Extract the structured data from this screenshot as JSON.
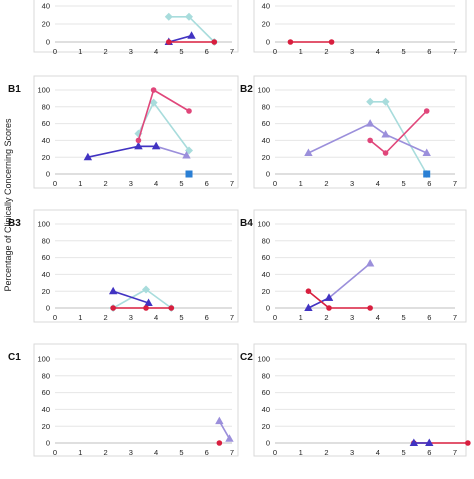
{
  "chart_data": {
    "type": "line",
    "ylabel": "Percentage of Clinically Concerning Scores",
    "x_ticks": [
      "0",
      "1",
      "2",
      "3",
      "4",
      "5",
      "6",
      "7"
    ],
    "y_ticks": [
      "0",
      "20",
      "40",
      "60",
      "80",
      "100"
    ],
    "grid": true,
    "colors": {
      "light_blue": "#a8dcdc",
      "purple": "#9b8fdb",
      "dark_blue": "#4133c2",
      "red": "#d81e3e",
      "pink": "#e0467a",
      "blue_square": "#2a7fd4"
    },
    "panels": [
      {
        "label": "",
        "xlim": [
          0,
          7
        ],
        "ylim": [
          0,
          40
        ],
        "y_ticks": [
          "0",
          "20",
          "40"
        ],
        "series": [
          {
            "color": "light_blue",
            "marker": "diamond",
            "points": [
              [
                4.5,
                28
              ],
              [
                5.3,
                28
              ],
              [
                6.3,
                0
              ]
            ]
          },
          {
            "color": "dark_blue",
            "marker": "triangle",
            "points": [
              [
                4.5,
                0
              ],
              [
                5.4,
                7
              ]
            ]
          },
          {
            "color": "red",
            "marker": "circle",
            "points": [
              [
                4.5,
                0
              ],
              [
                6.3,
                0
              ]
            ]
          }
        ]
      },
      {
        "label": "",
        "xlim": [
          0,
          7
        ],
        "ylim": [
          0,
          40
        ],
        "y_ticks": [
          "0",
          "20",
          "40"
        ],
        "series": [
          {
            "color": "red",
            "marker": "circle",
            "points": [
              [
                0.6,
                0
              ],
              [
                2.2,
                0
              ]
            ]
          }
        ]
      },
      {
        "label": "B1",
        "xlim": [
          0,
          7
        ],
        "ylim": [
          0,
          100
        ],
        "series": [
          {
            "color": "light_blue",
            "marker": "diamond",
            "points": [
              [
                3.3,
                48
              ],
              [
                3.9,
                85
              ],
              [
                5.3,
                28
              ]
            ]
          },
          {
            "color": "purple",
            "marker": "triangle",
            "points": [
              [
                3.3,
                33
              ],
              [
                4.0,
                33
              ],
              [
                5.2,
                22
              ]
            ]
          },
          {
            "color": "dark_blue",
            "marker": "triangle",
            "points": [
              [
                1.3,
                20
              ],
              [
                3.3,
                33
              ],
              [
                4.0,
                33
              ]
            ]
          },
          {
            "color": "pink",
            "marker": "circle",
            "points": [
              [
                3.3,
                40
              ],
              [
                3.9,
                100
              ],
              [
                5.3,
                75
              ]
            ]
          },
          {
            "color": "blue_square",
            "marker": "square",
            "points": [
              [
                5.3,
                0
              ]
            ]
          }
        ]
      },
      {
        "label": "B2",
        "xlim": [
          0,
          7
        ],
        "ylim": [
          0,
          100
        ],
        "series": [
          {
            "color": "light_blue",
            "marker": "diamond",
            "points": [
              [
                3.7,
                86
              ],
              [
                4.3,
                86
              ],
              [
                5.9,
                0
              ]
            ]
          },
          {
            "color": "purple",
            "marker": "triangle",
            "points": [
              [
                1.3,
                25
              ],
              [
                3.7,
                60
              ],
              [
                4.3,
                47
              ],
              [
                5.9,
                25
              ]
            ]
          },
          {
            "color": "pink",
            "marker": "circle",
            "points": [
              [
                3.7,
                40
              ],
              [
                4.3,
                25
              ],
              [
                5.9,
                75
              ]
            ]
          },
          {
            "color": "blue_square",
            "marker": "square",
            "points": [
              [
                5.9,
                0
              ]
            ]
          }
        ]
      },
      {
        "label": "B3",
        "xlim": [
          0,
          7
        ],
        "ylim": [
          0,
          100
        ],
        "series": [
          {
            "color": "light_blue",
            "marker": "diamond",
            "points": [
              [
                2.3,
                0
              ],
              [
                3.6,
                22
              ],
              [
                4.6,
                0
              ]
            ]
          },
          {
            "color": "dark_blue",
            "marker": "triangle",
            "points": [
              [
                2.3,
                20
              ],
              [
                3.7,
                6
              ]
            ]
          },
          {
            "color": "red",
            "marker": "circle",
            "points": [
              [
                2.3,
                0
              ],
              [
                3.6,
                0
              ],
              [
                4.6,
                0
              ]
            ]
          }
        ]
      },
      {
        "label": "B4",
        "xlim": [
          0,
          7
        ],
        "ylim": [
          0,
          100
        ],
        "series": [
          {
            "color": "purple",
            "marker": "triangle",
            "points": [
              [
                2.1,
                12
              ],
              [
                3.7,
                53
              ]
            ]
          },
          {
            "color": "dark_blue",
            "marker": "triangle",
            "points": [
              [
                1.3,
                0
              ],
              [
                2.1,
                12
              ]
            ]
          },
          {
            "color": "red",
            "marker": "circle",
            "points": [
              [
                1.3,
                20
              ],
              [
                2.1,
                0
              ],
              [
                3.7,
                0
              ]
            ]
          }
        ]
      },
      {
        "label": "C1",
        "xlim": [
          0,
          7
        ],
        "ylim": [
          0,
          100
        ],
        "series": [
          {
            "color": "purple",
            "marker": "triangle",
            "points": [
              [
                6.5,
                26
              ],
              [
                6.9,
                5
              ]
            ]
          },
          {
            "color": "red",
            "marker": "circle",
            "points": [
              [
                6.5,
                0
              ]
            ]
          }
        ]
      },
      {
        "label": "C2",
        "xlim": [
          0,
          7
        ],
        "ylim": [
          0,
          100
        ],
        "series": [
          {
            "color": "red",
            "marker": "circle",
            "points": [
              [
                5.4,
                0
              ],
              [
                7.5,
                0
              ]
            ]
          },
          {
            "color": "dark_blue",
            "marker": "triangle",
            "points": [
              [
                5.4,
                0
              ],
              [
                6.0,
                0
              ]
            ]
          }
        ]
      }
    ]
  }
}
